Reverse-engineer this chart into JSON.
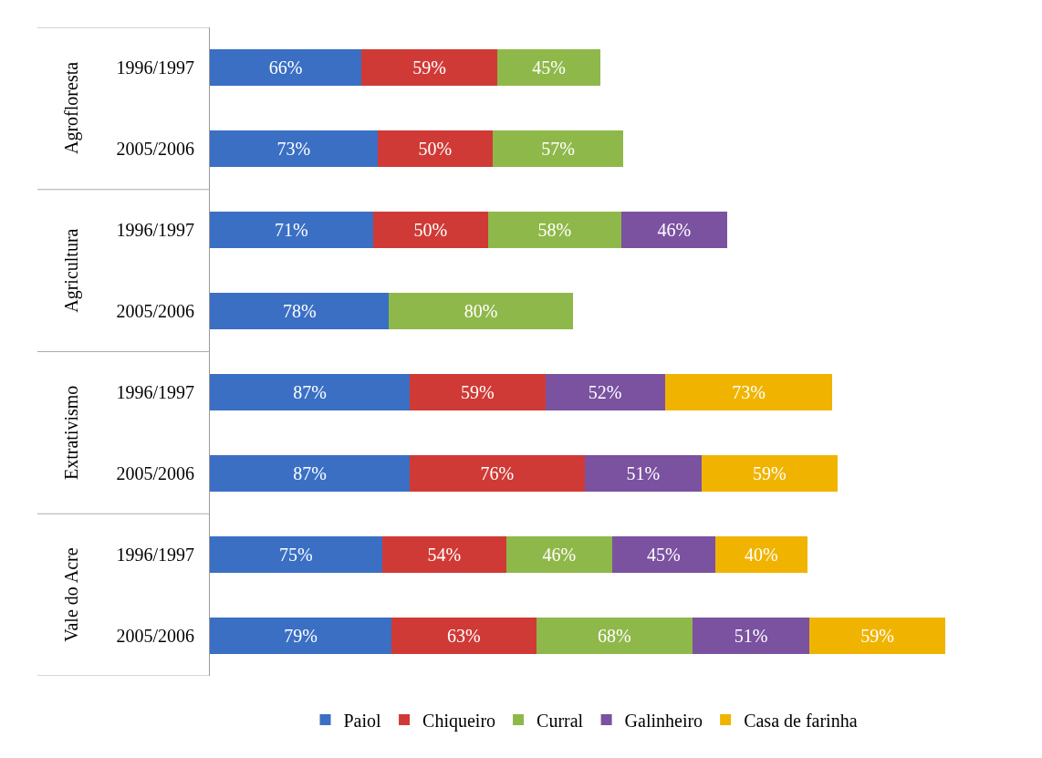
{
  "chart_data": {
    "type": "bar",
    "orientation": "horizontal",
    "stacked": true,
    "categories": [
      "1996/1997",
      "2005/2006",
      "1996/1997",
      "2005/2006",
      "1996/1997",
      "2005/2006",
      "1996/1997",
      "2005/2006"
    ],
    "annotations": [
      "Agrofloresta",
      "Agricultura",
      "Extrativismo",
      "Vale do Acre"
    ],
    "legend": "bottom",
    "series": [
      {
        "name": "Paiol",
        "color": "#3a6fc4",
        "values": [
          66,
          73,
          71,
          78,
          87,
          87,
          75,
          79
        ],
        "value_labels": [
          "66%",
          "73%",
          "71%",
          "78%",
          "87%",
          "87%",
          "75%",
          "79%"
        ]
      },
      {
        "name": "Chiqueiro",
        "color": "#d03a36",
        "values": [
          59,
          50,
          50,
          null,
          59,
          76,
          54,
          63
        ],
        "value_labels": [
          "59%",
          "50%",
          "50%",
          null,
          "59%",
          "76%",
          "54%",
          "63%"
        ]
      },
      {
        "name": "Curral",
        "color": "#8fb84a",
        "values": [
          45,
          57,
          58,
          80,
          null,
          null,
          46,
          68
        ],
        "value_labels": [
          "45%",
          "57%",
          "58%",
          "80%",
          null,
          null,
          "46%",
          "68%"
        ]
      },
      {
        "name": "Galinheiro",
        "color": "#7a52a0",
        "values": [
          null,
          null,
          46,
          null,
          52,
          51,
          45,
          51
        ],
        "value_labels": [
          null,
          null,
          "46%",
          null,
          "52%",
          "51%",
          "45%",
          "51%"
        ]
      },
      {
        "name": "Casa de farinha",
        "color": "#f0b400",
        "values": [
          null,
          null,
          null,
          null,
          73,
          59,
          40,
          59
        ],
        "value_labels": [
          null,
          null,
          null,
          null,
          "73%",
          "59%",
          "40%",
          "59%"
        ]
      }
    ]
  }
}
